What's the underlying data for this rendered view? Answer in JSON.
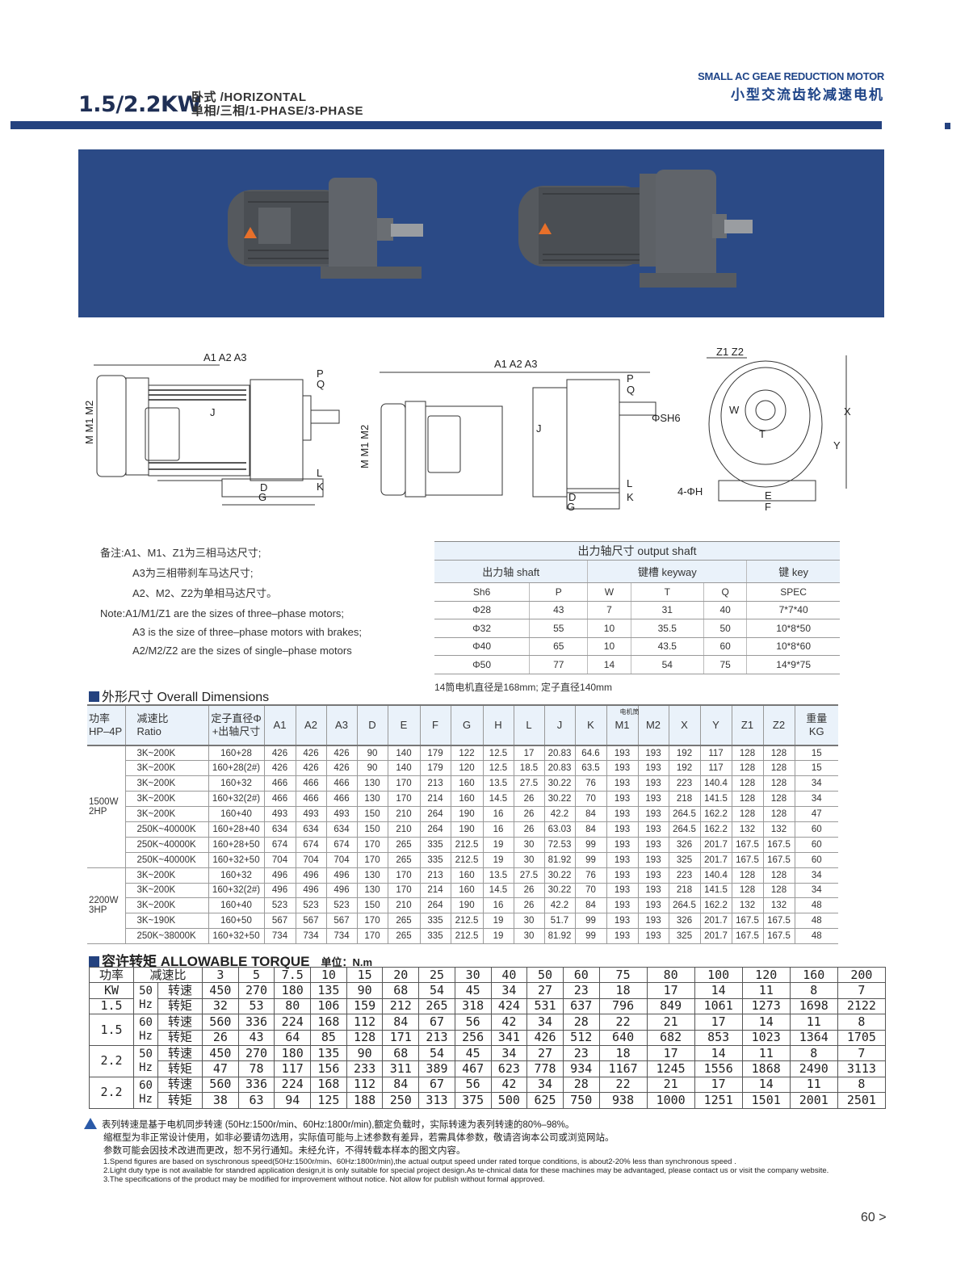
{
  "header": {
    "model": "1.5/2.2KW",
    "mount": "卧式 /HORIZONTAL",
    "phase": "单相/三相/1-PHASE/3-PHASE",
    "brand_en": "SMALL AC GEAE REDUCTION MOTOR",
    "brand_cn": "小型交流齿轮减速电机"
  },
  "colors": {
    "accent": "#24427f",
    "banner": "#2b4a86",
    "table_header": "#eaf2fa"
  },
  "drawing_labels": {
    "a": "A1 A2 A3",
    "m": "M M1 M2",
    "p": "P",
    "q": "Q",
    "j": "J",
    "l": "L",
    "k": "K",
    "d": "D",
    "g": "G",
    "sh": "ΦSH6",
    "z": "Z1 Z2",
    "w": "W",
    "t": "T",
    "x": "X",
    "y": "Y",
    "h": "4-ΦH",
    "e": "E",
    "f": "F"
  },
  "notes_cn": [
    "备注:A1、M1、Z1为三相马达尺寸;",
    "A3为三相带刹车马达尺寸;",
    "A2、M2、Z2为单相马达尺寸。"
  ],
  "notes_en": [
    "Note:A1/M1/Z1 are the sizes of three–phase motors;",
    "A3 is the size of three–phase motors with brakes;",
    "A2/M2/Z2 are the sizes of single–phase motors"
  ],
  "shaft_table": {
    "title": "出力轴尺寸 output shaft",
    "groups": [
      "出力轴 shaft",
      "键槽 keyway",
      "键 key"
    ],
    "columns": [
      "Sh6",
      "P",
      "W",
      "T",
      "Q",
      "SPEC"
    ],
    "rows": [
      [
        "Φ28",
        "43",
        "7",
        "31",
        "40",
        "7*7*40"
      ],
      [
        "Φ32",
        "55",
        "10",
        "35.5",
        "50",
        "10*8*50"
      ],
      [
        "Φ40",
        "65",
        "10",
        "43.5",
        "60",
        "10*8*60"
      ],
      [
        "Φ50",
        "77",
        "14",
        "54",
        "75",
        "14*9*75"
      ]
    ]
  },
  "shaft_note": "14筒电机直径是168mm; 定子直径140mm",
  "dims": {
    "heading": "外形尺寸 Overall Dimensions",
    "headers": [
      "功率\nHP–4P",
      "减速比\nRatio",
      "定子直径Φ\n+出轴尺寸",
      "A1",
      "A2",
      "A3",
      "D",
      "E",
      "F",
      "G",
      "H",
      "L",
      "J",
      "K",
      "M1",
      "M2",
      "X",
      "Y",
      "Z1",
      "Z2",
      "重量\nKG"
    ],
    "m_group": "电机筒直径",
    "groups": [
      {
        "power": "1500W\n2HP",
        "rows": [
          [
            "3K~200K",
            "160+28",
            "426",
            "426",
            "426",
            "90",
            "140",
            "179",
            "122",
            "12.5",
            "17",
            "20.83",
            "64.6",
            "193",
            "193",
            "192",
            "117",
            "128",
            "128",
            "15"
          ],
          [
            "3K~200K",
            "160+28(2#)",
            "426",
            "426",
            "426",
            "90",
            "140",
            "179",
            "120",
            "12.5",
            "18.5",
            "20.83",
            "63.5",
            "193",
            "193",
            "192",
            "117",
            "128",
            "128",
            "15"
          ],
          [
            "3K~200K",
            "160+32",
            "466",
            "466",
            "466",
            "130",
            "170",
            "213",
            "160",
            "13.5",
            "27.5",
            "30.22",
            "76",
            "193",
            "193",
            "223",
            "140.4",
            "128",
            "128",
            "34"
          ],
          [
            "3K~200K",
            "160+32(2#)",
            "466",
            "466",
            "466",
            "130",
            "170",
            "214",
            "160",
            "14.5",
            "26",
            "30.22",
            "70",
            "193",
            "193",
            "218",
            "141.5",
            "128",
            "128",
            "34"
          ],
          [
            "3K~200K",
            "160+40",
            "493",
            "493",
            "493",
            "150",
            "210",
            "264",
            "190",
            "16",
            "26",
            "42.2",
            "84",
            "193",
            "193",
            "264.5",
            "162.2",
            "128",
            "128",
            "47"
          ],
          [
            "250K~40000K",
            "160+28+40",
            "634",
            "634",
            "634",
            "150",
            "210",
            "264",
            "190",
            "16",
            "26",
            "63.03",
            "84",
            "193",
            "193",
            "264.5",
            "162.2",
            "132",
            "132",
            "60"
          ],
          [
            "250K~40000K",
            "160+28+50",
            "674",
            "674",
            "674",
            "170",
            "265",
            "335",
            "212.5",
            "19",
            "30",
            "72.53",
            "99",
            "193",
            "193",
            "326",
            "201.7",
            "167.5",
            "167.5",
            "60"
          ],
          [
            "250K~40000K",
            "160+32+50",
            "704",
            "704",
            "704",
            "170",
            "265",
            "335",
            "212.5",
            "19",
            "30",
            "81.92",
            "99",
            "193",
            "193",
            "325",
            "201.7",
            "167.5",
            "167.5",
            "60"
          ]
        ]
      },
      {
        "power": "2200W\n3HP",
        "rows": [
          [
            "3K~200K",
            "160+32",
            "496",
            "496",
            "496",
            "130",
            "170",
            "213",
            "160",
            "13.5",
            "27.5",
            "30.22",
            "76",
            "193",
            "193",
            "223",
            "140.4",
            "128",
            "128",
            "34"
          ],
          [
            "3K~200K",
            "160+32(2#)",
            "496",
            "496",
            "496",
            "130",
            "170",
            "214",
            "160",
            "14.5",
            "26",
            "30.22",
            "70",
            "193",
            "193",
            "218",
            "141.5",
            "128",
            "128",
            "34"
          ],
          [
            "3K~200K",
            "160+40",
            "523",
            "523",
            "523",
            "150",
            "210",
            "264",
            "190",
            "16",
            "26",
            "42.2",
            "84",
            "193",
            "193",
            "264.5",
            "162.2",
            "132",
            "132",
            "48"
          ],
          [
            "3K~190K",
            "160+50",
            "567",
            "567",
            "567",
            "170",
            "265",
            "335",
            "212.5",
            "19",
            "30",
            "51.7",
            "99",
            "193",
            "193",
            "326",
            "201.7",
            "167.5",
            "167.5",
            "48"
          ],
          [
            "250K~38000K",
            "160+32+50",
            "734",
            "734",
            "734",
            "170",
            "265",
            "335",
            "212.5",
            "19",
            "30",
            "81.92",
            "99",
            "193",
            "193",
            "325",
            "201.7",
            "167.5",
            "167.5",
            "48"
          ]
        ]
      }
    ]
  },
  "torque": {
    "heading": "容许转矩 ALLOWABLE TORQUE",
    "unit": "单位：N.m",
    "power_label": "功率",
    "kw_label": "KW",
    "ratio_label": "减速比",
    "speed_label": "转速",
    "torque_label": "转矩",
    "hz": "Hz",
    "ratios": [
      "3",
      "5",
      "7.5",
      "10",
      "15",
      "20",
      "25",
      "30",
      "40",
      "50",
      "60",
      "75",
      "80",
      "100",
      "120",
      "160",
      "200"
    ],
    "blocks": [
      {
        "kw": "1.5",
        "freq": "50",
        "speed": [
          "450",
          "270",
          "180",
          "135",
          "90",
          "68",
          "54",
          "45",
          "34",
          "27",
          "23",
          "18",
          "17",
          "14",
          "11",
          "8",
          "7"
        ],
        "torque": [
          "32",
          "53",
          "80",
          "106",
          "159",
          "212",
          "265",
          "318",
          "424",
          "531",
          "637",
          "796",
          "849",
          "1061",
          "1273",
          "1698",
          "2122"
        ]
      },
      {
        "kw": "1.5",
        "freq": "60",
        "speed": [
          "560",
          "336",
          "224",
          "168",
          "112",
          "84",
          "67",
          "56",
          "42",
          "34",
          "28",
          "22",
          "21",
          "17",
          "14",
          "11",
          "8"
        ],
        "torque": [
          "26",
          "43",
          "64",
          "85",
          "128",
          "171",
          "213",
          "256",
          "341",
          "426",
          "512",
          "640",
          "682",
          "853",
          "1023",
          "1364",
          "1705"
        ]
      },
      {
        "kw": "2.2",
        "freq": "50",
        "speed": [
          "450",
          "270",
          "180",
          "135",
          "90",
          "68",
          "54",
          "45",
          "34",
          "27",
          "23",
          "18",
          "17",
          "14",
          "11",
          "8",
          "7"
        ],
        "torque": [
          "47",
          "78",
          "117",
          "156",
          "233",
          "311",
          "389",
          "467",
          "623",
          "778",
          "934",
          "1167",
          "1245",
          "1556",
          "1868",
          "2490",
          "3113"
        ]
      },
      {
        "kw": "2.2",
        "freq": "60",
        "speed": [
          "560",
          "336",
          "224",
          "168",
          "112",
          "84",
          "67",
          "56",
          "42",
          "34",
          "28",
          "22",
          "21",
          "17",
          "14",
          "11",
          "8"
        ],
        "torque": [
          "38",
          "63",
          "94",
          "125",
          "188",
          "250",
          "313",
          "375",
          "500",
          "625",
          "750",
          "938",
          "1000",
          "1251",
          "1501",
          "2001",
          "2501"
        ]
      }
    ]
  },
  "footnotes_cn": [
    "表列转速是基于电机同步转速 (50Hz:1500r/min、60Hz:1800r/min),额定负载时，实际转速为表列转速的80%–98%。",
    "缩框型为非正常设计使用，如非必要请勿选用，实际值可能与上述参数有差异，若需具体参数，敬请咨询本公司或浏览网站。",
    "参数可能会因技术改进而更改，恕不另行通知。未经允许，不得转载本样本的图文内容。"
  ],
  "footnotes_en": [
    "1.Spend figures are based on syschronous speed(50Hz:1500r/min、60Hz:1800r/min),the actual output speed under rated torque conditions, is about2-20% less than synchronous speed .",
    "2.Light duty type is not available for standred application design,it is only suitable for special project design.As te-chnical data for these machines may be advantaged, please contact us or visit the company website.",
    "3.The specifications of the product may be modified for improvement without notice. Not allow for publish without formal approved."
  ],
  "page": "60 >"
}
